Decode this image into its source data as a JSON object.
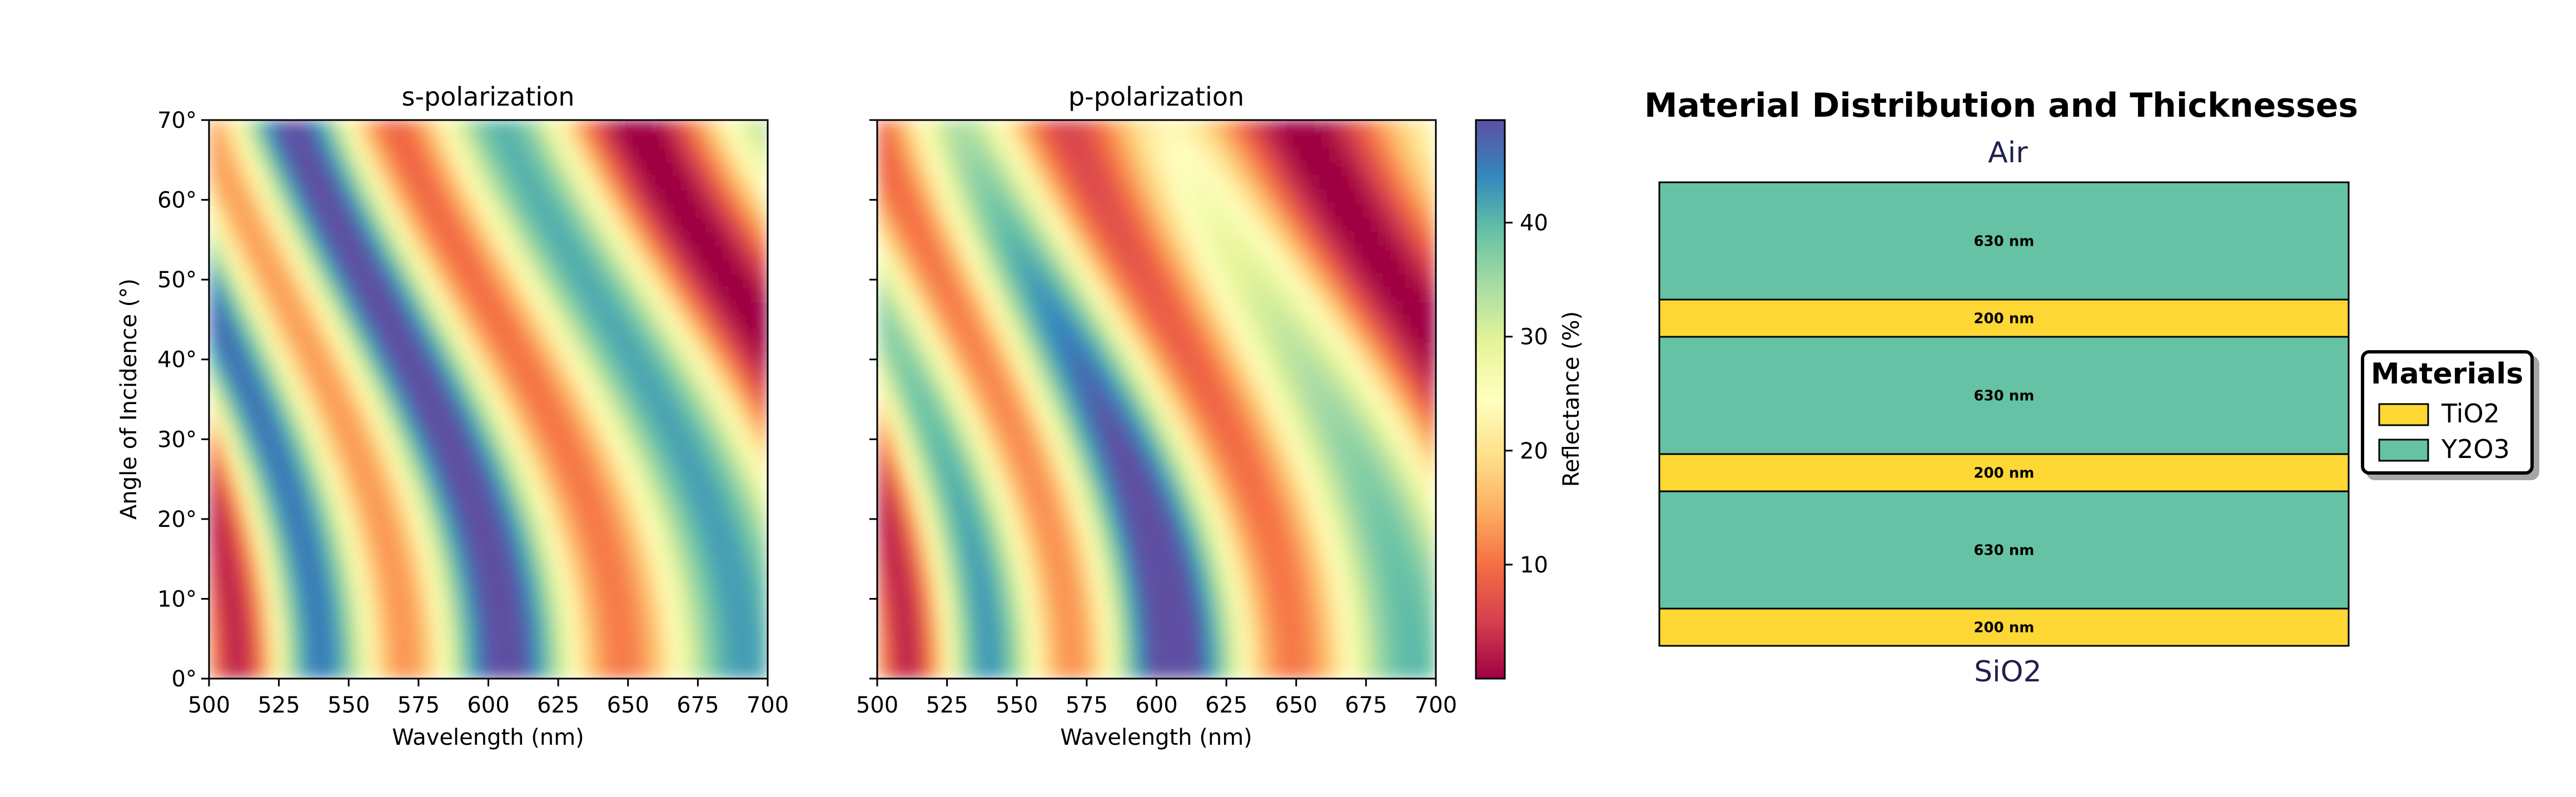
{
  "chart_data": [
    {
      "type": "heatmap",
      "title": "s-polarization",
      "xlabel": "Wavelength (nm)",
      "ylabel": "Angle of Incidence (°)",
      "xlim": [
        500,
        700
      ],
      "ylim": [
        0,
        70
      ],
      "x_ticks": [
        "500",
        "525",
        "550",
        "575",
        "600",
        "625",
        "650",
        "675",
        "700"
      ],
      "y_ticks": [
        "0°",
        "10°",
        "20°",
        "30°",
        "40°",
        "50°",
        "60°",
        "70°"
      ],
      "colormap": "Spectral",
      "value_range": [
        0,
        49
      ],
      "description_values": "Reflectance (%) vs wavelength and angle"
    },
    {
      "type": "heatmap",
      "title": "p-polarization",
      "xlabel": "Wavelength (nm)",
      "xlim": [
        500,
        700
      ],
      "ylim": [
        0,
        70
      ],
      "x_ticks": [
        "500",
        "525",
        "550",
        "575",
        "600",
        "625",
        "650",
        "675",
        "700"
      ],
      "colormap": "Spectral",
      "value_range": [
        0,
        49
      ],
      "colorbar": {
        "label": "Reflectance (%)",
        "ticks": [
          "10",
          "20",
          "30",
          "40"
        ],
        "tick_values": [
          10,
          20,
          30,
          40
        ],
        "range": [
          0,
          49
        ]
      }
    },
    {
      "type": "diagram",
      "title": "Material Distribution and Thicknesses",
      "top_label": "Air",
      "bottom_label": "SiO2",
      "layers_top_to_bottom": [
        {
          "material": "Y2O3",
          "thickness_nm": 630,
          "label": "630 nm"
        },
        {
          "material": "TiO2",
          "thickness_nm": 200,
          "label": "200 nm"
        },
        {
          "material": "Y2O3",
          "thickness_nm": 630,
          "label": "630 nm"
        },
        {
          "material": "TiO2",
          "thickness_nm": 200,
          "label": "200 nm"
        },
        {
          "material": "Y2O3",
          "thickness_nm": 630,
          "label": "630 nm"
        },
        {
          "material": "TiO2",
          "thickness_nm": 200,
          "label": "200 nm"
        }
      ],
      "legend": {
        "title": "Materials",
        "placement": "right",
        "entries": [
          {
            "name": "TiO2",
            "color": "#fdd835"
          },
          {
            "name": "Y2O3",
            "color": "#66c2a5"
          }
        ]
      }
    }
  ],
  "colors": {
    "TiO2": "#fdd835",
    "Y2O3": "#66c2a5",
    "media_label": "#1f1f4f"
  }
}
